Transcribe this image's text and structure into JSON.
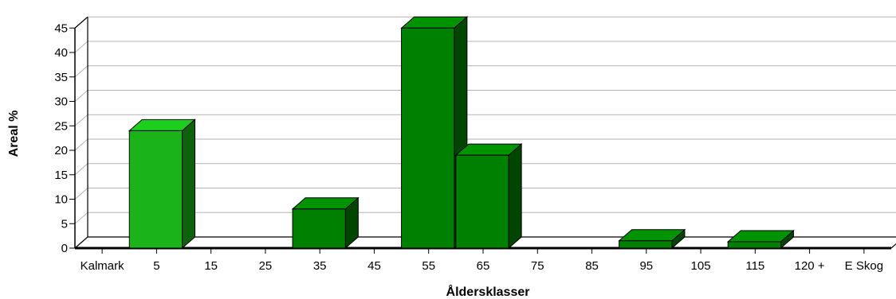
{
  "chart_data": {
    "type": "bar",
    "title": "",
    "xlabel": "Åldersklasser",
    "ylabel": "Areal %",
    "categories": [
      "Kalmark",
      "5",
      "15",
      "25",
      "35",
      "45",
      "55",
      "65",
      "75",
      "85",
      "95",
      "105",
      "115",
      "120 +",
      "E Skog"
    ],
    "values": [
      0,
      24,
      0,
      0,
      8,
      0,
      45,
      19,
      0,
      0,
      1.5,
      0,
      1.3,
      0,
      0
    ],
    "highlight_category": "5",
    "ylim": [
      0,
      45
    ],
    "yticks": [
      0,
      5,
      10,
      15,
      20,
      25,
      30,
      35,
      40,
      45
    ],
    "grid": true,
    "legend": "none",
    "style": "3d",
    "colors": {
      "bar_default": "#008000",
      "bar_highlight": "#1ab31a",
      "grid": "#b4b4b4",
      "axis": "#000000"
    }
  }
}
